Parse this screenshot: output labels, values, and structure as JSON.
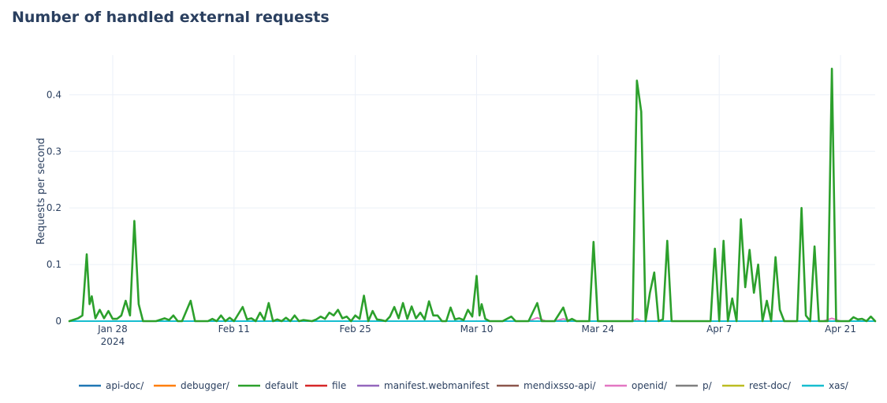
{
  "page": {
    "title": "Number of handled external requests"
  },
  "chart_data": {
    "type": "line",
    "title": "Number of handled external requests",
    "xlabel": "",
    "ylabel": "Requests per second",
    "xlim": [
      "2024-01-23",
      "2024-04-25"
    ],
    "ylim": [
      0,
      0.47
    ],
    "yticks": [
      0,
      0.1,
      0.2,
      0.3,
      0.4
    ],
    "ytick_labels": [
      "0",
      "0.1",
      "0.2",
      "0.3",
      "0.4"
    ],
    "xticks": [
      "2024-01-28",
      "2024-02-11",
      "2024-02-25",
      "2024-03-10",
      "2024-03-24",
      "2024-04-07",
      "2024-04-21"
    ],
    "xtick_labels": [
      "Jan 28",
      "Feb 11",
      "Feb 25",
      "Mar 10",
      "Mar 24",
      "Apr 7",
      "Apr 21"
    ],
    "xtick_sublabel": "2024",
    "grid": true,
    "legend_position": "bottom",
    "series": [
      {
        "name": "api-doc/",
        "color": "#1f77b4",
        "points": [
          [
            "2024-01-23",
            0
          ],
          [
            "2024-04-25",
            0
          ]
        ]
      },
      {
        "name": "debugger/",
        "color": "#ff7f0e",
        "points": [
          [
            "2024-01-23",
            0
          ],
          [
            "2024-04-25",
            0
          ]
        ]
      },
      {
        "name": "default",
        "color": "#2ca02c",
        "points": [
          [
            "2024-01-23",
            0
          ],
          [
            "2024-01-24",
            0.005
          ],
          [
            "2024-01-24T12:00",
            0.01
          ],
          [
            "2024-01-25",
            0.118
          ],
          [
            "2024-01-25T08:00",
            0.03
          ],
          [
            "2024-01-25T14:00",
            0.044
          ],
          [
            "2024-01-26",
            0.005
          ],
          [
            "2024-01-26T12:00",
            0.02
          ],
          [
            "2024-01-27",
            0.005
          ],
          [
            "2024-01-27T12:00",
            0.018
          ],
          [
            "2024-01-28",
            0.004
          ],
          [
            "2024-01-28T12:00",
            0.004
          ],
          [
            "2024-01-29",
            0.01
          ],
          [
            "2024-01-29T12:00",
            0.036
          ],
          [
            "2024-01-30",
            0.01
          ],
          [
            "2024-01-30T12:00",
            0.177
          ],
          [
            "2024-01-31",
            0.03
          ],
          [
            "2024-01-31T12:00",
            0
          ],
          [
            "2024-02-02",
            0
          ],
          [
            "2024-02-03",
            0.005
          ],
          [
            "2024-02-03T12:00",
            0.002
          ],
          [
            "2024-02-04",
            0.01
          ],
          [
            "2024-02-04T12:00",
            0
          ],
          [
            "2024-02-05",
            0
          ],
          [
            "2024-02-06",
            0.036
          ],
          [
            "2024-02-06T12:00",
            0
          ],
          [
            "2024-02-08",
            0
          ],
          [
            "2024-02-08T12:00",
            0.004
          ],
          [
            "2024-02-09",
            0
          ],
          [
            "2024-02-09T12:00",
            0.01
          ],
          [
            "2024-02-10",
            0
          ],
          [
            "2024-02-10T12:00",
            0.006
          ],
          [
            "2024-02-11",
            0
          ],
          [
            "2024-02-12",
            0.025
          ],
          [
            "2024-02-12T12:00",
            0.003
          ],
          [
            "2024-02-13",
            0.005
          ],
          [
            "2024-02-13T12:00",
            0
          ],
          [
            "2024-02-14",
            0.015
          ],
          [
            "2024-02-14T12:00",
            0.002
          ],
          [
            "2024-02-15",
            0.032
          ],
          [
            "2024-02-15T12:00",
            0
          ],
          [
            "2024-02-16",
            0.003
          ],
          [
            "2024-02-16T12:00",
            0
          ],
          [
            "2024-02-17",
            0.006
          ],
          [
            "2024-02-17T12:00",
            0
          ],
          [
            "2024-02-18",
            0.01
          ],
          [
            "2024-02-18T12:00",
            0
          ],
          [
            "2024-02-19",
            0.002
          ],
          [
            "2024-02-20",
            0
          ],
          [
            "2024-02-20T12:00",
            0.003
          ],
          [
            "2024-02-21",
            0.008
          ],
          [
            "2024-02-21T12:00",
            0.004
          ],
          [
            "2024-02-22",
            0.015
          ],
          [
            "2024-02-22T12:00",
            0.01
          ],
          [
            "2024-02-23",
            0.02
          ],
          [
            "2024-02-23T12:00",
            0.005
          ],
          [
            "2024-02-24",
            0.008
          ],
          [
            "2024-02-24T12:00",
            0
          ],
          [
            "2024-02-25",
            0.01
          ],
          [
            "2024-02-25T12:00",
            0.004
          ],
          [
            "2024-02-26",
            0.045
          ],
          [
            "2024-02-26T12:00",
            0
          ],
          [
            "2024-02-27",
            0.018
          ],
          [
            "2024-02-27T12:00",
            0.003
          ],
          [
            "2024-02-28",
            0.002
          ],
          [
            "2024-02-28T12:00",
            0
          ],
          [
            "2024-02-29",
            0.008
          ],
          [
            "2024-02-29T12:00",
            0.025
          ],
          [
            "2024-03-01",
            0.005
          ],
          [
            "2024-03-01T12:00",
            0.032
          ],
          [
            "2024-03-02",
            0.004
          ],
          [
            "2024-03-02T12:00",
            0.026
          ],
          [
            "2024-03-03",
            0.005
          ],
          [
            "2024-03-03T12:00",
            0.015
          ],
          [
            "2024-03-04",
            0.003
          ],
          [
            "2024-03-04T12:00",
            0.035
          ],
          [
            "2024-03-05",
            0.01
          ],
          [
            "2024-03-05T12:00",
            0.01
          ],
          [
            "2024-03-06",
            0
          ],
          [
            "2024-03-06T12:00",
            0
          ],
          [
            "2024-03-07",
            0.024
          ],
          [
            "2024-03-07T12:00",
            0.003
          ],
          [
            "2024-03-08",
            0.005
          ],
          [
            "2024-03-08T12:00",
            0.002
          ],
          [
            "2024-03-09",
            0.02
          ],
          [
            "2024-03-09T12:00",
            0.008
          ],
          [
            "2024-03-10",
            0.08
          ],
          [
            "2024-03-10T08:00",
            0.01
          ],
          [
            "2024-03-10T14:00",
            0.03
          ],
          [
            "2024-03-11",
            0.004
          ],
          [
            "2024-03-11T12:00",
            0
          ],
          [
            "2024-03-13",
            0
          ],
          [
            "2024-03-14",
            0.008
          ],
          [
            "2024-03-14T12:00",
            0
          ],
          [
            "2024-03-16",
            0
          ],
          [
            "2024-03-17",
            0.032
          ],
          [
            "2024-03-17T12:00",
            0
          ],
          [
            "2024-03-19",
            0
          ],
          [
            "2024-03-20",
            0.024
          ],
          [
            "2024-03-20T12:00",
            0
          ],
          [
            "2024-03-21",
            0.004
          ],
          [
            "2024-03-21T12:00",
            0
          ],
          [
            "2024-03-23",
            0
          ],
          [
            "2024-03-23T12:00",
            0.14
          ],
          [
            "2024-03-24",
            0
          ],
          [
            "2024-03-28",
            0
          ],
          [
            "2024-03-28T12:00",
            0.425
          ],
          [
            "2024-03-29",
            0.37
          ],
          [
            "2024-03-29T12:00",
            0
          ],
          [
            "2024-03-30",
            0.05
          ],
          [
            "2024-03-30T12:00",
            0.086
          ],
          [
            "2024-03-31",
            0
          ],
          [
            "2024-03-31T12:00",
            0.003
          ],
          [
            "2024-04-01",
            0.142
          ],
          [
            "2024-04-01T12:00",
            0
          ],
          [
            "2024-04-06",
            0
          ],
          [
            "2024-04-06T12:00",
            0.128
          ],
          [
            "2024-04-07",
            0
          ],
          [
            "2024-04-07T12:00",
            0.142
          ],
          [
            "2024-04-08",
            0
          ],
          [
            "2024-04-08T12:00",
            0.04
          ],
          [
            "2024-04-09",
            0
          ],
          [
            "2024-04-09T12:00",
            0.18
          ],
          [
            "2024-04-10",
            0.06
          ],
          [
            "2024-04-10T12:00",
            0.126
          ],
          [
            "2024-04-11",
            0.05
          ],
          [
            "2024-04-11T12:00",
            0.1
          ],
          [
            "2024-04-12",
            0
          ],
          [
            "2024-04-12T12:00",
            0.036
          ],
          [
            "2024-04-13",
            0
          ],
          [
            "2024-04-13T12:00",
            0.113
          ],
          [
            "2024-04-14",
            0.02
          ],
          [
            "2024-04-14T12:00",
            0
          ],
          [
            "2024-04-16",
            0
          ],
          [
            "2024-04-16T12:00",
            0.2
          ],
          [
            "2024-04-17",
            0.01
          ],
          [
            "2024-04-17T12:00",
            0
          ],
          [
            "2024-04-18",
            0.132
          ],
          [
            "2024-04-18T12:00",
            0
          ],
          [
            "2024-04-19",
            0
          ],
          [
            "2024-04-19T12:00",
            0
          ],
          [
            "2024-04-20",
            0.446
          ],
          [
            "2024-04-20T12:00",
            0
          ],
          [
            "2024-04-22",
            0
          ],
          [
            "2024-04-22T12:00",
            0.007
          ],
          [
            "2024-04-23",
            0.003
          ],
          [
            "2024-04-23T12:00",
            0.004
          ],
          [
            "2024-04-24",
            0
          ],
          [
            "2024-04-24T12:00",
            0.008
          ],
          [
            "2024-04-25",
            0
          ]
        ]
      },
      {
        "name": "file",
        "color": "#d62728",
        "points": [
          [
            "2024-01-23",
            0
          ],
          [
            "2024-04-25",
            0
          ]
        ]
      },
      {
        "name": "manifest.webmanifest",
        "color": "#9467bd",
        "points": [
          [
            "2024-01-23",
            0
          ],
          [
            "2024-04-25",
            0
          ]
        ]
      },
      {
        "name": "mendixsso-api/",
        "color": "#8c564b",
        "points": [
          [
            "2024-01-23",
            0
          ],
          [
            "2024-04-25",
            0
          ]
        ]
      },
      {
        "name": "openid/",
        "color": "#e377c2",
        "points": [
          [
            "2024-01-23",
            0
          ],
          [
            "2024-03-16",
            0
          ],
          [
            "2024-03-17",
            0.006
          ],
          [
            "2024-03-18",
            0
          ],
          [
            "2024-03-19",
            0
          ],
          [
            "2024-03-20",
            0.004
          ],
          [
            "2024-03-21",
            0
          ],
          [
            "2024-03-28",
            0
          ],
          [
            "2024-03-28T12:00",
            0.004
          ],
          [
            "2024-03-29",
            0
          ],
          [
            "2024-04-19",
            0
          ],
          [
            "2024-04-20",
            0.005
          ],
          [
            "2024-04-21",
            0
          ],
          [
            "2024-04-25",
            0
          ]
        ]
      },
      {
        "name": "p/",
        "color": "#7f7f7f",
        "points": [
          [
            "2024-01-23",
            0
          ],
          [
            "2024-04-25",
            0
          ]
        ]
      },
      {
        "name": "rest-doc/",
        "color": "#bcbd22",
        "points": [
          [
            "2024-01-23",
            0
          ],
          [
            "2024-04-25",
            0
          ]
        ]
      },
      {
        "name": "xas/",
        "color": "#17becf",
        "points": [
          [
            "2024-01-23",
            0
          ],
          [
            "2024-04-25",
            0
          ]
        ]
      }
    ]
  }
}
